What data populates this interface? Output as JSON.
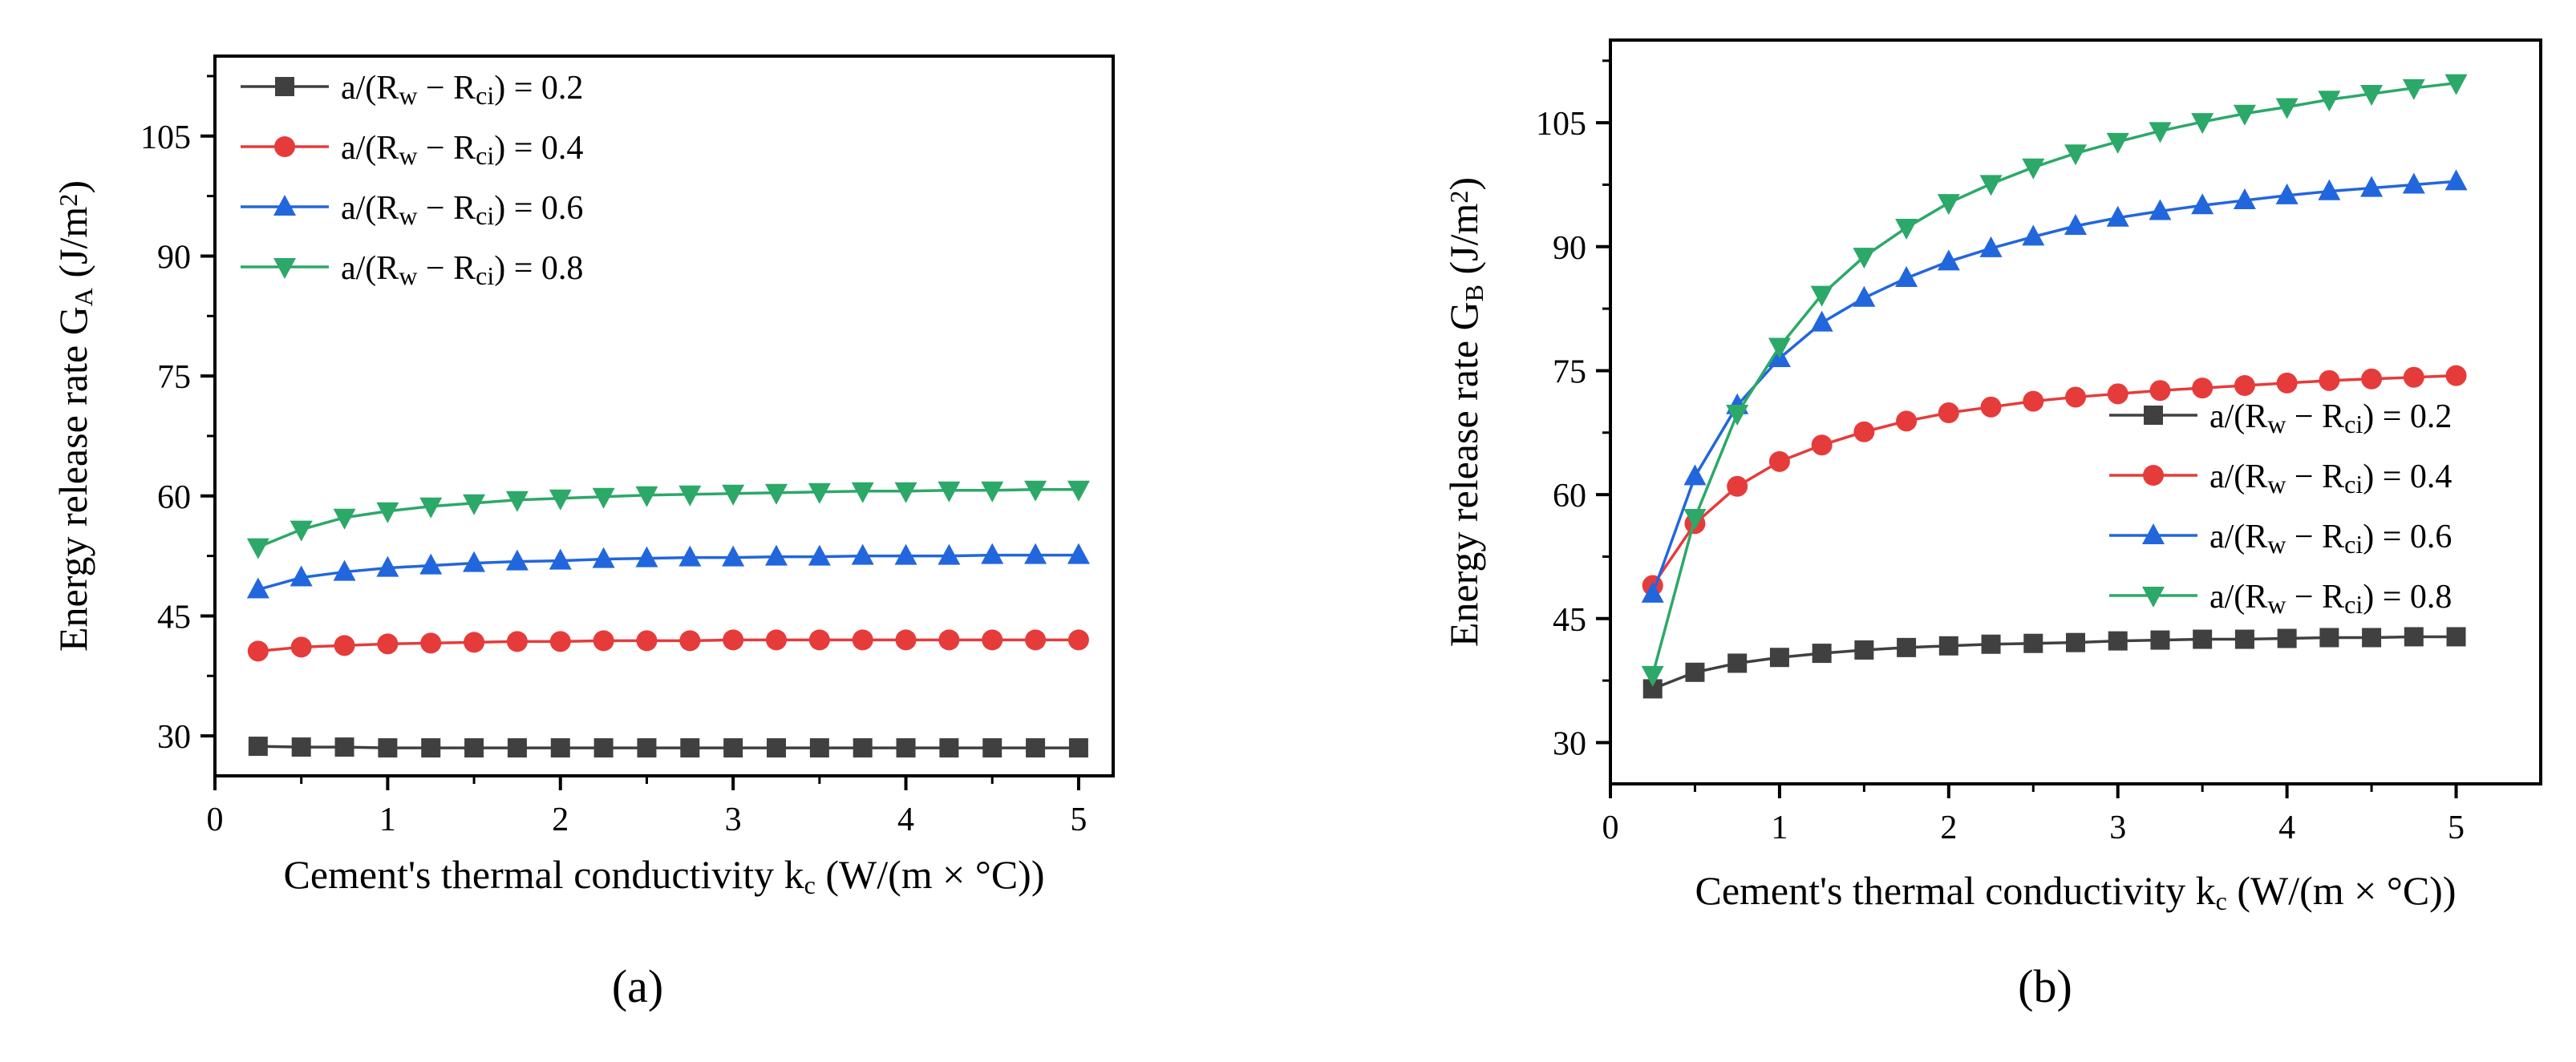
{
  "chart_data": [
    {
      "type": "line",
      "panel_label": "(a)",
      "title": "",
      "xlabel": "Cement's thermal conductivity k_c (W/(m × °C))",
      "ylabel": "Energy release rate G_A (J/m^2)",
      "xlim": [
        0,
        5.2
      ],
      "ylim": [
        25,
        115
      ],
      "xticks": [
        0,
        1,
        2,
        3,
        4,
        5
      ],
      "yticks": [
        30,
        45,
        60,
        75,
        90,
        105
      ],
      "legend_position": "top-left",
      "x": [
        0.25,
        0.5,
        0.75,
        1.0,
        1.25,
        1.5,
        1.75,
        2.0,
        2.25,
        2.5,
        2.75,
        3.0,
        3.25,
        3.5,
        3.75,
        4.0,
        4.25,
        4.5,
        4.75,
        5.0
      ],
      "series": [
        {
          "name": "a/(R_w − R_ci) = 0.2",
          "color": "#404040",
          "marker": "square",
          "values": [
            28.7,
            28.6,
            28.6,
            28.5,
            28.5,
            28.5,
            28.5,
            28.5,
            28.5,
            28.5,
            28.5,
            28.5,
            28.5,
            28.5,
            28.5,
            28.5,
            28.5,
            28.5,
            28.5,
            28.5
          ]
        },
        {
          "name": "a/(R_w − R_ci) = 0.4",
          "color": "#e63b3b",
          "marker": "circle",
          "values": [
            40.6,
            41.1,
            41.3,
            41.5,
            41.6,
            41.7,
            41.8,
            41.8,
            41.9,
            41.9,
            41.9,
            42.0,
            42.0,
            42.0,
            42.0,
            42.0,
            42.0,
            42.0,
            42.0,
            42.0
          ]
        },
        {
          "name": "a/(R_w − R_ci) = 0.6",
          "color": "#2266dd",
          "marker": "triangle-up",
          "values": [
            48.3,
            49.8,
            50.5,
            51.0,
            51.3,
            51.6,
            51.8,
            51.9,
            52.1,
            52.2,
            52.3,
            52.3,
            52.4,
            52.4,
            52.5,
            52.5,
            52.5,
            52.6,
            52.6,
            52.6
          ]
        },
        {
          "name": "a/(R_w − R_ci) = 0.8",
          "color": "#2ca868",
          "marker": "triangle-down",
          "values": [
            53.6,
            55.8,
            57.3,
            58.1,
            58.7,
            59.1,
            59.5,
            59.7,
            59.9,
            60.1,
            60.2,
            60.3,
            60.4,
            60.5,
            60.6,
            60.6,
            60.7,
            60.7,
            60.8,
            60.8
          ]
        }
      ]
    },
    {
      "type": "line",
      "panel_label": "(b)",
      "title": "",
      "xlabel": "Cement's thermal conductivity k_c (W/(m × °C))",
      "ylabel": "Energy release rate G_B (J/m^2)",
      "xlim": [
        0,
        5.5
      ],
      "ylim": [
        25,
        115
      ],
      "xticks": [
        0,
        1,
        2,
        3,
        4,
        5
      ],
      "yticks": [
        30,
        45,
        60,
        75,
        90,
        105
      ],
      "legend_position": "center-right",
      "x": [
        0.25,
        0.5,
        0.75,
        1.0,
        1.25,
        1.5,
        1.75,
        2.0,
        2.25,
        2.5,
        2.75,
        3.0,
        3.25,
        3.5,
        3.75,
        4.0,
        4.25,
        4.5,
        4.75,
        5.0
      ],
      "series": [
        {
          "name": "a/(R_w − R_ci) = 0.2",
          "color": "#404040",
          "marker": "square",
          "values": [
            36.5,
            38.5,
            39.6,
            40.3,
            40.8,
            41.2,
            41.5,
            41.7,
            41.9,
            42.0,
            42.1,
            42.3,
            42.4,
            42.5,
            42.5,
            42.6,
            42.7,
            42.7,
            42.8,
            42.8
          ]
        },
        {
          "name": "a/(R_w − R_ci) = 0.4",
          "color": "#e63b3b",
          "marker": "circle",
          "values": [
            49.0,
            56.5,
            61.0,
            64.0,
            66.0,
            67.6,
            68.9,
            69.9,
            70.6,
            71.3,
            71.8,
            72.2,
            72.6,
            72.9,
            73.2,
            73.5,
            73.8,
            74.0,
            74.2,
            74.4
          ]
        },
        {
          "name": "a/(R_w − R_ci) = 0.6",
          "color": "#2266dd",
          "marker": "triangle-up",
          "values": [
            48.0,
            62.2,
            70.8,
            76.5,
            80.8,
            83.8,
            86.2,
            88.2,
            89.8,
            91.2,
            92.5,
            93.5,
            94.3,
            95.0,
            95.6,
            96.2,
            96.7,
            97.1,
            97.5,
            97.9
          ]
        },
        {
          "name": "a/(R_w − R_ci) = 0.8",
          "color": "#2ca868",
          "marker": "triangle-down",
          "values": [
            38.2,
            57.2,
            69.8,
            77.9,
            84.2,
            88.8,
            92.3,
            95.3,
            97.6,
            99.6,
            101.3,
            102.7,
            104.0,
            105.1,
            106.1,
            106.9,
            107.8,
            108.5,
            109.2,
            109.8
          ]
        }
      ]
    }
  ]
}
